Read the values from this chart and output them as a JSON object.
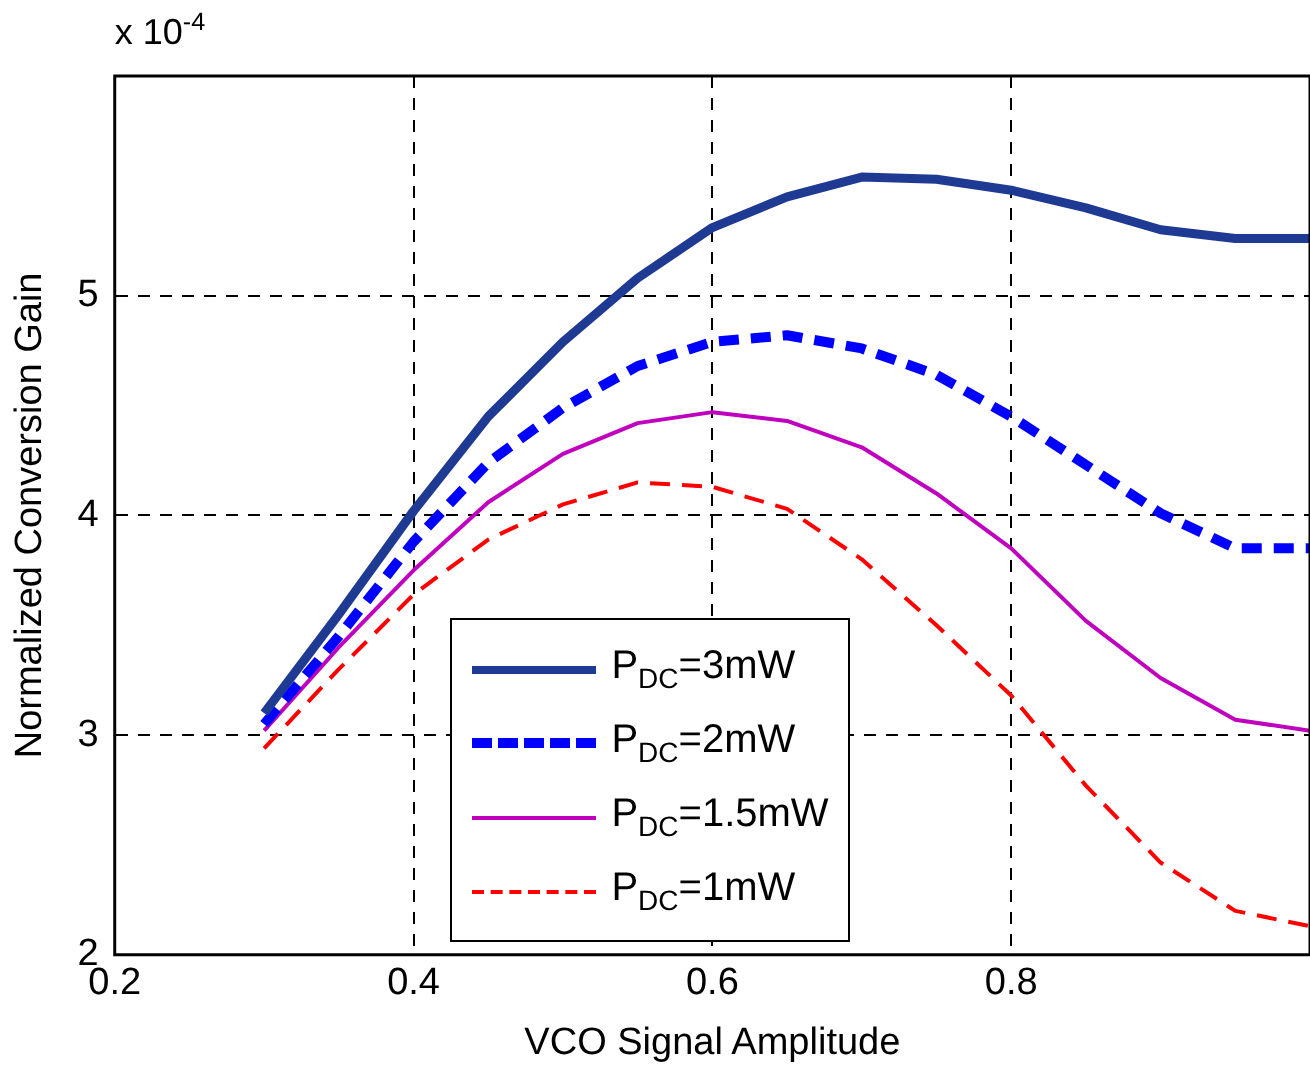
{
  "chart_data": {
    "type": "line",
    "xlabel": "VCO Signal Amplitude",
    "ylabel": "Normalized Conversion Gain",
    "annotations": [
      "x 10$^{-4}$"
    ],
    "x": [
      0.3,
      0.35,
      0.4,
      0.45,
      0.5,
      0.55,
      0.6,
      0.65,
      0.7,
      0.75,
      0.8,
      0.85,
      0.9,
      0.95,
      1.0
    ],
    "series": [
      {
        "name": "P$_{DC}$=3mW",
        "color": "#1f3a93",
        "line_style": "solid",
        "values": [
          3.1,
          3.55,
          4.02,
          4.45,
          4.79,
          5.08,
          5.31,
          5.45,
          5.54,
          5.53,
          5.48,
          5.4,
          5.3,
          5.26,
          5.26
        ]
      },
      {
        "name": "P$_{DC}$=2mW",
        "color": "#0000ff",
        "line_style": "dashed",
        "values": [
          3.05,
          3.45,
          3.88,
          4.24,
          4.49,
          4.68,
          4.79,
          4.82,
          4.76,
          4.64,
          4.45,
          4.23,
          4.01,
          3.85,
          3.85
        ]
      },
      {
        "name": "P$_{DC}$=1.5mW",
        "color": "#bf00bf",
        "line_style": "solid",
        "values": [
          3.02,
          3.4,
          3.75,
          4.06,
          4.28,
          4.42,
          4.47,
          4.43,
          4.31,
          4.1,
          3.85,
          3.52,
          3.26,
          3.07,
          3.02
        ]
      },
      {
        "name": "P$_{DC}$=1mW",
        "color": "#ff0000",
        "line_style": "dashed",
        "values": [
          2.94,
          3.3,
          3.64,
          3.89,
          4.05,
          4.15,
          4.13,
          4.03,
          3.8,
          3.5,
          3.18,
          2.77,
          2.42,
          2.2,
          2.13
        ]
      }
    ],
    "xlim": [
      0.2,
      1.0
    ],
    "xticks": [
      0.2,
      0.4,
      0.6,
      0.8
    ],
    "ylim": [
      2,
      6
    ],
    "yticks": [
      2,
      3,
      4,
      5
    ],
    "grid": true,
    "legend": "bottom left",
    "marker": "none"
  }
}
